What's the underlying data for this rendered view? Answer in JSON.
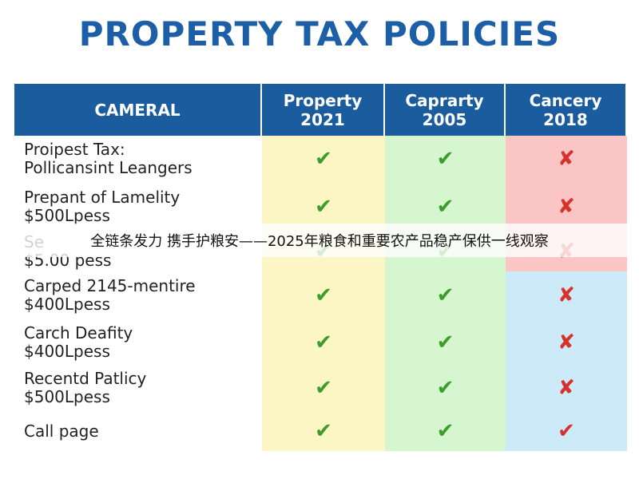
{
  "title": "PROPERTY TAX POLICIES",
  "table": {
    "header": [
      [
        "CAMERAL"
      ],
      [
        "Property",
        "2021"
      ],
      [
        "Caprarty",
        "2005"
      ],
      [
        "Cancery",
        "2018"
      ]
    ],
    "rows": [
      {
        "label": [
          "Proipest Tax:",
          "Pollicansint Leangers"
        ],
        "cells": [
          "✔",
          "✔",
          "✘"
        ]
      },
      {
        "label": [
          "Prepant of Lamelity",
          "$500Lpess"
        ],
        "cells": [
          "✔",
          "✔",
          "✘"
        ]
      },
      {
        "label": [
          "Se",
          "$5.00 pess"
        ],
        "cells": [
          "✔",
          "✔",
          "✘"
        ]
      },
      {
        "label": [
          "Carped 2145-mentire",
          "$400Lpess"
        ],
        "cells": [
          "✔",
          "✔",
          "✘"
        ]
      },
      {
        "label": [
          "Carch Deafity",
          "$400Lpess"
        ],
        "cells": [
          "✔",
          "✔",
          "✘"
        ]
      },
      {
        "label": [
          "Recentd Patlicy",
          "$500Lpess"
        ],
        "cells": [
          "✔",
          "✔",
          "✘"
        ]
      },
      {
        "label": [
          "Call page"
        ],
        "cells": [
          "✔",
          "✔",
          "✔"
        ]
      }
    ]
  },
  "caption": "全链条发力 携手护粮安——2025年粮食和重要农产品稳产保供一线观察"
}
